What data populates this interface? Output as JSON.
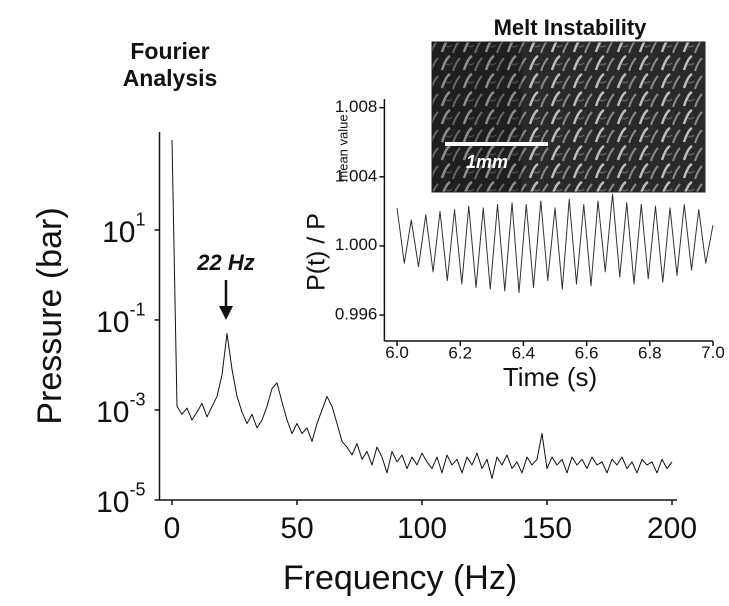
{
  "chart_data": [
    {
      "type": "line",
      "title": "Fourier Analysis",
      "xlabel": "Frequency (Hz)",
      "ylabel": "Pressure (bar)",
      "log_y": true,
      "color": "#111111",
      "xlim": [
        -5,
        202
      ],
      "xticks": [
        0,
        50,
        100,
        150,
        200
      ],
      "ylim": [
        1e-05,
        1500
      ],
      "yticks": [
        {
          "value": 1e-05,
          "label": "10",
          "exponent": "-5"
        },
        {
          "value": 0.001,
          "label": "10",
          "exponent": "-3"
        },
        {
          "value": 0.1,
          "label": "10",
          "exponent": "-1"
        },
        {
          "value": 10,
          "label": "10",
          "exponent": "1"
        }
      ],
      "annotations": [
        {
          "text": "22 Hz"
        }
      ],
      "x": [
        0,
        2,
        4,
        6,
        8,
        10,
        12,
        14,
        16,
        18,
        20,
        22,
        24,
        26,
        28,
        30,
        32,
        34,
        36,
        38,
        40,
        42,
        44,
        46,
        48,
        50,
        52,
        54,
        56,
        58,
        60,
        62,
        64,
        66,
        68,
        70,
        72,
        74,
        76,
        78,
        80,
        82,
        84,
        86,
        88,
        90,
        92,
        94,
        96,
        98,
        100,
        102,
        104,
        106,
        108,
        110,
        112,
        114,
        116,
        118,
        120,
        122,
        124,
        126,
        128,
        130,
        132,
        134,
        136,
        138,
        140,
        142,
        144,
        146,
        148,
        150,
        152,
        154,
        156,
        158,
        160,
        162,
        164,
        166,
        168,
        170,
        172,
        174,
        176,
        178,
        180,
        182,
        184,
        186,
        188,
        190,
        192,
        194,
        196,
        198,
        200
      ],
      "values": [
        1000,
        0.0012,
        0.0008,
        0.0011,
        0.0006,
        0.0009,
        0.0014,
        0.0007,
        0.0012,
        0.002,
        0.006,
        0.05,
        0.008,
        0.002,
        0.0009,
        0.0005,
        0.0008,
        0.0004,
        0.0006,
        0.0012,
        0.003,
        0.004,
        0.0015,
        0.0006,
        0.0003,
        0.0005,
        0.0003,
        0.0004,
        0.0002,
        0.0005,
        0.001,
        0.002,
        0.0012,
        0.0005,
        0.0002,
        0.00015,
        0.0001,
        0.00018,
        8e-05,
        0.00012,
        6e-05,
        0.00015,
        9e-05,
        4e-05,
        0.00012,
        7e-05,
        0.0001,
        5e-05,
        9e-05,
        6e-05,
        0.00011,
        7e-05,
        5e-05,
        9e-05,
        4e-05,
        0.0001,
        6e-05,
        8e-05,
        4e-05,
        9e-05,
        6e-05,
        0.00011,
        5e-05,
        8e-05,
        3e-05,
        9e-05,
        6e-05,
        0.0001,
        5e-05,
        7e-05,
        4e-05,
        9e-05,
        6e-05,
        8e-05,
        0.0003,
        5e-05,
        9e-05,
        6e-05,
        8e-05,
        4e-05,
        9e-05,
        6e-05,
        8e-05,
        5e-05,
        9e-05,
        6e-05,
        7e-05,
        4e-05,
        8e-05,
        6e-05,
        9e-05,
        5e-05,
        7e-05,
        4e-05,
        8e-05,
        6e-05,
        7e-05,
        4e-05,
        8e-05,
        5e-05,
        7e-05
      ]
    },
    {
      "type": "line",
      "title": "Melt Instability",
      "xlabel": "Time (s)",
      "ylabel": "P(t) / P",
      "ylabel_subscript": "mean value",
      "image_label": "1mm",
      "log_y": false,
      "color": "#333333",
      "xlim": [
        5.96,
        7.0
      ],
      "xticks": [
        {
          "value": 6,
          "label": "6.0"
        },
        6.2,
        6.4,
        6.6,
        6.8,
        {
          "value": 7,
          "label": "7.0"
        }
      ],
      "ylim": [
        0.9945,
        1.0085
      ],
      "yticks": [
        0.996,
        {
          "value": 1,
          "label": "1.000"
        },
        1.004,
        1.008
      ],
      "x": [
        6.0,
        6.023,
        6.045,
        6.068,
        6.091,
        6.114,
        6.136,
        6.159,
        6.182,
        6.205,
        6.227,
        6.25,
        6.273,
        6.295,
        6.318,
        6.341,
        6.364,
        6.386,
        6.409,
        6.432,
        6.455,
        6.477,
        6.5,
        6.523,
        6.545,
        6.568,
        6.591,
        6.614,
        6.636,
        6.659,
        6.682,
        6.705,
        6.727,
        6.75,
        6.773,
        6.795,
        6.818,
        6.841,
        6.864,
        6.886,
        6.909,
        6.932,
        6.955,
        6.977,
        7.0
      ],
      "values": [
        1.0022,
        0.999,
        1.0015,
        0.9988,
        1.0018,
        0.9985,
        1.002,
        0.998,
        1.0021,
        0.9978,
        1.0023,
        0.9976,
        1.0022,
        0.9975,
        1.0024,
        0.9974,
        1.0025,
        0.9973,
        1.0024,
        0.9976,
        1.0026,
        0.998,
        1.0022,
        0.9975,
        1.0027,
        0.9978,
        1.0024,
        0.9977,
        1.0026,
        0.9985,
        1.003,
        0.9982,
        1.0025,
        0.9978,
        1.0024,
        0.9981,
        1.0023,
        0.9979,
        1.0022,
        0.9983,
        1.0024,
        0.9986,
        1.0021,
        0.999,
        1.0012
      ]
    }
  ]
}
